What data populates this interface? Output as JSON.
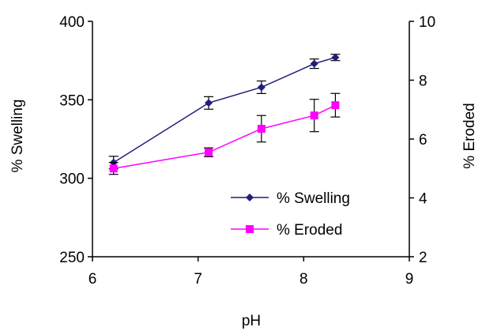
{
  "chart_data": {
    "type": "line",
    "xlabel": "pH",
    "ylabel_left": "% Swelling",
    "ylabel_right": "% Eroded",
    "xlim": [
      6,
      9
    ],
    "ylim_left": [
      250,
      400
    ],
    "ylim_right": [
      2,
      10
    ],
    "x_ticks": [
      "6",
      "7",
      "8",
      "9"
    ],
    "y_left_ticks": [
      "250",
      "300",
      "350",
      "400"
    ],
    "y_right_ticks": [
      "2",
      "4",
      "6",
      "8",
      "10"
    ],
    "grid": false,
    "legend_placement": "bottom-right",
    "series": [
      {
        "name": "% Swelling",
        "axis": "left",
        "color": "#1f1f7a",
        "marker": "diamond",
        "x": [
          6.2,
          7.1,
          7.6,
          8.1,
          8.3
        ],
        "y": [
          310,
          348,
          358,
          373,
          377
        ],
        "err": [
          4,
          4,
          4,
          3,
          2
        ]
      },
      {
        "name": "% Eroded",
        "axis": "right",
        "color": "#ff00ff",
        "marker": "square",
        "x": [
          6.2,
          7.1,
          7.6,
          8.1,
          8.3
        ],
        "y": [
          5.0,
          5.55,
          6.35,
          6.8,
          7.15
        ],
        "err": [
          0.2,
          0.15,
          0.45,
          0.55,
          0.4
        ]
      }
    ]
  }
}
